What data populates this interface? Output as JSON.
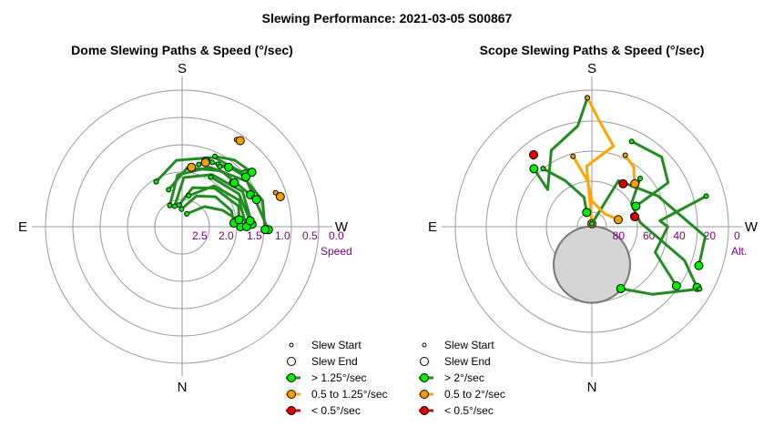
{
  "figure": {
    "title": "Slewing Performance: 2021-03-05 S00867"
  },
  "chart_data": [
    {
      "type": "polar-scatter-line",
      "title": "Dome Slewing Paths & Speed (°/sec)",
      "directions": {
        "top": "S",
        "bottom": "N",
        "left": "E",
        "right": "W"
      },
      "radial_axis": {
        "label": "Speed",
        "ticks": [
          "2.5",
          "2.0",
          "1.5",
          "1.0",
          "0.5",
          "0.0"
        ],
        "range": [
          2.5,
          0.0
        ]
      },
      "colors": {
        "fast": "#228B22",
        "medium": "#FFA500",
        "slow": "#DD0000",
        "fast_marker": "#00EE00",
        "medium_marker": "#F0A000",
        "slow_marker": "#DD0000"
      },
      "legend": [
        {
          "label": "Slew Start",
          "kind": "start"
        },
        {
          "label": "Slew End",
          "kind": "end"
        },
        {
          "label": "> 1.25°/sec",
          "kind": "fast"
        },
        {
          "label": "0.5 to 1.25°/sec",
          "kind": "medium"
        },
        {
          "label": "< 0.5°/sec",
          "kind": "slow"
        }
      ],
      "paths": [
        {
          "class": "fast",
          "points": [
            [
              200,
              2.25
            ],
            [
              228,
              1.95
            ],
            [
              248,
              1.7
            ],
            [
              262,
              1.5
            ],
            [
              270,
              1.43
            ]
          ],
          "start": true,
          "end": true
        },
        {
          "class": "fast",
          "points": [
            [
              178,
              2.18
            ],
            [
              205,
              1.88
            ],
            [
              228,
              1.68
            ],
            [
              252,
              1.55
            ],
            [
              266,
              1.55
            ]
          ],
          "start": true,
          "end": true
        },
        {
          "class": "fast",
          "points": [
            [
              172,
              2.1
            ],
            [
              195,
              1.76
            ],
            [
              220,
              1.58
            ],
            [
              250,
              1.4
            ],
            [
              263,
              1.45
            ]
          ],
          "start": true,
          "end": true
        },
        {
          "class": "fast",
          "points": [
            [
              160,
              2.1
            ],
            [
              182,
              1.6
            ],
            [
              210,
              1.4
            ],
            [
              240,
              1.22
            ],
            [
              268,
              1.22
            ]
          ],
          "start": true,
          "end": true
        },
        {
          "class": "fast",
          "points": [
            [
              150,
              2.05
            ],
            [
              175,
              1.55
            ],
            [
              205,
              1.3
            ],
            [
              235,
              1.05
            ],
            [
              272,
              0.92
            ]
          ],
          "start": true,
          "end": true
        },
        {
          "class": "fast",
          "points": [
            [
              192,
              1.92
            ],
            [
              218,
              1.55
            ],
            [
              245,
              1.35
            ],
            [
              270,
              1.32
            ]
          ],
          "start": true,
          "end": true
        },
        {
          "class": "fast",
          "points": [
            [
              160,
              1.78
            ],
            [
              185,
              1.42
            ],
            [
              215,
              1.25
            ],
            [
              245,
              1.12
            ]
          ],
          "start": true,
          "end": true
        },
        {
          "class": "fast",
          "points": [
            [
              150,
              1.55
            ],
            [
              175,
              1.28
            ],
            [
              205,
              1.1
            ],
            [
              230,
              1.0
            ]
          ],
          "start": true,
          "end": true
        },
        {
          "class": "fast",
          "points": [
            [
              210,
              1.45
            ],
            [
              240,
              1.3
            ],
            [
              265,
              1.25
            ]
          ],
          "start": true,
          "end": true
        },
        {
          "class": "fast",
          "points": [
            [
              205,
              1.2
            ],
            [
              225,
              1.05
            ],
            [
              252,
              0.95
            ],
            [
              272,
              0.98
            ]
          ],
          "start": true,
          "end": true
        },
        {
          "class": "fast",
          "points": [
            [
              205,
              1.08
            ],
            [
              218,
              0.95
            ],
            [
              232,
              0.88
            ]
          ],
          "start": true,
          "end": true
        },
        {
          "class": "fast",
          "points": [
            [
              210,
              1.18
            ],
            [
              220,
              1.1
            ],
            [
              232,
              1.02
            ]
          ],
          "start": true,
          "end": true
        },
        {
          "class": "fast",
          "points": [
            [
              195,
              1.32
            ],
            [
              200,
              1.22
            ]
          ],
          "start": true,
          "end": true
        },
        {
          "class": "fast",
          "points": [
            [
              212,
              1.2
            ],
            [
              218,
              1.12
            ]
          ],
          "start": true,
          "end": true
        },
        {
          "class": "fast",
          "points": [
            [
              228,
              1.28
            ],
            [
              230,
              1.25
            ]
          ],
          "start": true,
          "end": true
        },
        {
          "class": "fast",
          "points": [
            [
              248,
              1.08
            ],
            [
              250,
              1.05
            ]
          ],
          "start": true,
          "end": true
        },
        {
          "class": "medium",
          "points": [
            [
              212,
              0.62
            ],
            [
              214,
              0.6
            ]
          ],
          "start": true,
          "end": true
        },
        {
          "class": "medium",
          "points": [
            [
              200,
              1.25
            ],
            [
              200,
              1.25
            ]
          ],
          "start": false,
          "end": true
        },
        {
          "class": "medium",
          "points": [
            [
              250,
              0.68
            ],
            [
              253,
              0.62
            ]
          ],
          "start": true,
          "end": true
        },
        {
          "class": "medium",
          "points": [
            [
              187,
              1.42
            ],
            [
              189,
              1.4
            ]
          ],
          "start": true,
          "end": true
        }
      ]
    },
    {
      "type": "polar-scatter-line",
      "title": "Scope Slewing Paths & Speed (°/sec)",
      "directions": {
        "top": "S",
        "bottom": "N",
        "left": "E",
        "right": "W"
      },
      "radial_axis": {
        "label": "Alt.",
        "ticks": [
          "80",
          "60",
          "40",
          "20",
          "0"
        ],
        "range": [
          90,
          0
        ]
      },
      "excluded_zone": {
        "alt": 65,
        "az": 0,
        "radius_deg": 15
      },
      "colors": {
        "fast": "#228B22",
        "medium": "#FFA500",
        "slow": "#DD0000",
        "fast_marker": "#00EE00",
        "medium_marker": "#F0A000",
        "slow_marker": "#DD0000"
      },
      "legend": [
        {
          "label": "Slew Start",
          "kind": "start"
        },
        {
          "label": "Slew End",
          "kind": "end"
        },
        {
          "label": "> 2°/sec",
          "kind": "fast"
        },
        {
          "label": "0.5 to 2°/sec",
          "kind": "medium"
        },
        {
          "label": "< 0.5°/sec",
          "kind": "slow"
        }
      ],
      "paths": [
        {
          "class": "fast",
          "points": [
            [
              178,
              5
            ],
            [
              172,
              23
            ],
            [
              152,
              33
            ],
            [
              130,
              52
            ],
            [
              135,
              36
            ]
          ],
          "start": true,
          "end": true
        },
        {
          "class": "medium",
          "points": [
            [
              178,
              5
            ],
            [
              185,
              22
            ],
            [
              195,
              35
            ],
            [
              175,
              50
            ],
            [
              180,
              88
            ]
          ],
          "start": true,
          "end": true
        },
        {
          "class": "fast",
          "points": [
            [
              180,
              88
            ],
            [
              210,
              55
            ],
            [
              245,
              42
            ],
            [
              275,
              15
            ],
            [
              290,
              15
            ]
          ],
          "start": true,
          "end": true
        },
        {
          "class": "fast",
          "points": [
            [
              255,
              12
            ],
            [
              265,
              45
            ],
            [
              270,
              40
            ],
            [
              292,
              45
            ],
            [
              305,
              22
            ]
          ],
          "start": true,
          "end": true
        },
        {
          "class": "fast",
          "points": [
            [
              140,
              40
            ],
            [
              150,
              55
            ],
            [
              165,
              70
            ],
            [
              160,
              80
            ]
          ],
          "start": true,
          "end": true
        },
        {
          "class": "fast",
          "points": [
            [
              225,
              45
            ],
            [
              240,
              60
            ],
            [
              265,
              58
            ],
            [
              290,
              25
            ],
            [
              300,
              10
            ]
          ],
          "start": true,
          "end": true
        },
        {
          "class": "medium",
          "points": [
            [
              205,
              38
            ],
            [
              215,
              42
            ],
            [
              225,
              50
            ]
          ],
          "start": true,
          "end": true
        },
        {
          "class": "medium",
          "points": [
            [
              165,
              42
            ],
            [
              175,
              60
            ],
            [
              180,
              73
            ],
            [
              225,
              78
            ],
            [
              255,
              72
            ]
          ],
          "start": true,
          "end": true
        },
        {
          "class": "fast",
          "points": [
            [
              205,
              28
            ],
            [
              225,
              25
            ],
            [
              240,
              32
            ],
            [
              245,
              58
            ]
          ],
          "start": true,
          "end": true
        },
        {
          "class": "fast",
          "points": [
            [
              300,
              8
            ],
            [
              318,
              30
            ],
            [
              335,
              45
            ]
          ],
          "start": true,
          "end": true
        },
        {
          "class": "slow",
          "points": [
            [
              140,
              30
            ],
            [
              141,
              29
            ]
          ],
          "start": true,
          "end": true
        },
        {
          "class": "slow",
          "points": [
            [
              215,
              56
            ],
            [
              216,
              55
            ]
          ],
          "start": true,
          "end": true
        },
        {
          "class": "slow",
          "points": [
            [
              255,
              62
            ],
            [
              257,
              61
            ]
          ],
          "start": true,
          "end": true
        }
      ]
    }
  ]
}
